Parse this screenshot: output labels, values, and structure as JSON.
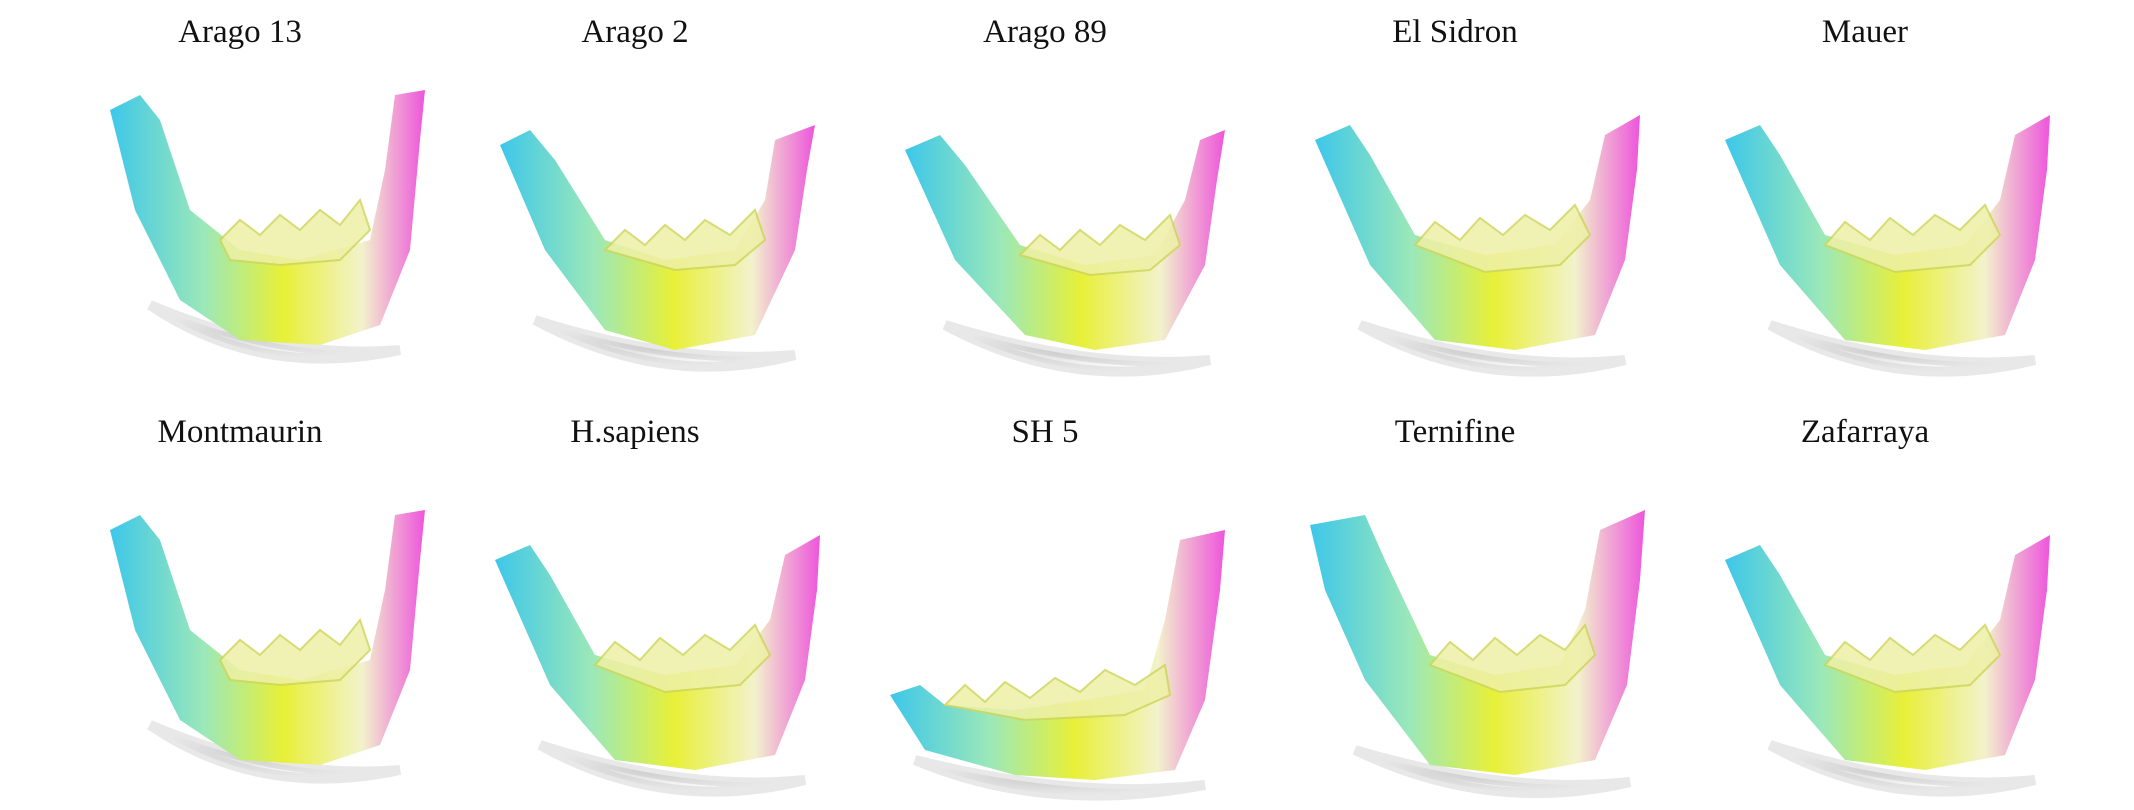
{
  "specimens": [
    {
      "label": "Arago 13",
      "variant": "deep-u",
      "colors": {
        "left": "#3dc7ea",
        "right": "#ee55dc",
        "body": "#e8f038"
      }
    },
    {
      "label": "Arago 2",
      "variant": "shallow",
      "colors": {
        "left": "#3dc7ea",
        "right": "#ee55dc",
        "body": "#e8f038"
      }
    },
    {
      "label": "Arago 89",
      "variant": "shallow-long",
      "colors": {
        "left": "#3dc7ea",
        "right": "#ee55dc",
        "body": "#e8f038"
      }
    },
    {
      "label": "El Sidron",
      "variant": "wide",
      "colors": {
        "left": "#3dc7ea",
        "right": "#ee55dc",
        "body": "#e8f038"
      }
    },
    {
      "label": "Mauer",
      "variant": "wide",
      "colors": {
        "left": "#3dc7ea",
        "right": "#ee55dc",
        "body": "#e8f038"
      }
    },
    {
      "label": "Montmaurin",
      "variant": "deep-u",
      "colors": {
        "left": "#3dc7ea",
        "right": "#ee55dc",
        "body": "#e8f038"
      }
    },
    {
      "label": "H.sapiens",
      "variant": "wide",
      "colors": {
        "left": "#3dc7ea",
        "right": "#ee55dc",
        "body": "#e8f038"
      }
    },
    {
      "label": "SH 5",
      "variant": "low-left",
      "colors": {
        "left": "#3dc7ea",
        "right": "#ee55dc",
        "body": "#e8f038"
      }
    },
    {
      "label": "Ternifine",
      "variant": "tall",
      "colors": {
        "left": "#3dc7ea",
        "right": "#ee55dc",
        "body": "#e8f038"
      }
    },
    {
      "label": "Zafarraya",
      "variant": "wide",
      "colors": {
        "left": "#3dc7ea",
        "right": "#ee55dc",
        "body": "#e8f038"
      }
    }
  ]
}
